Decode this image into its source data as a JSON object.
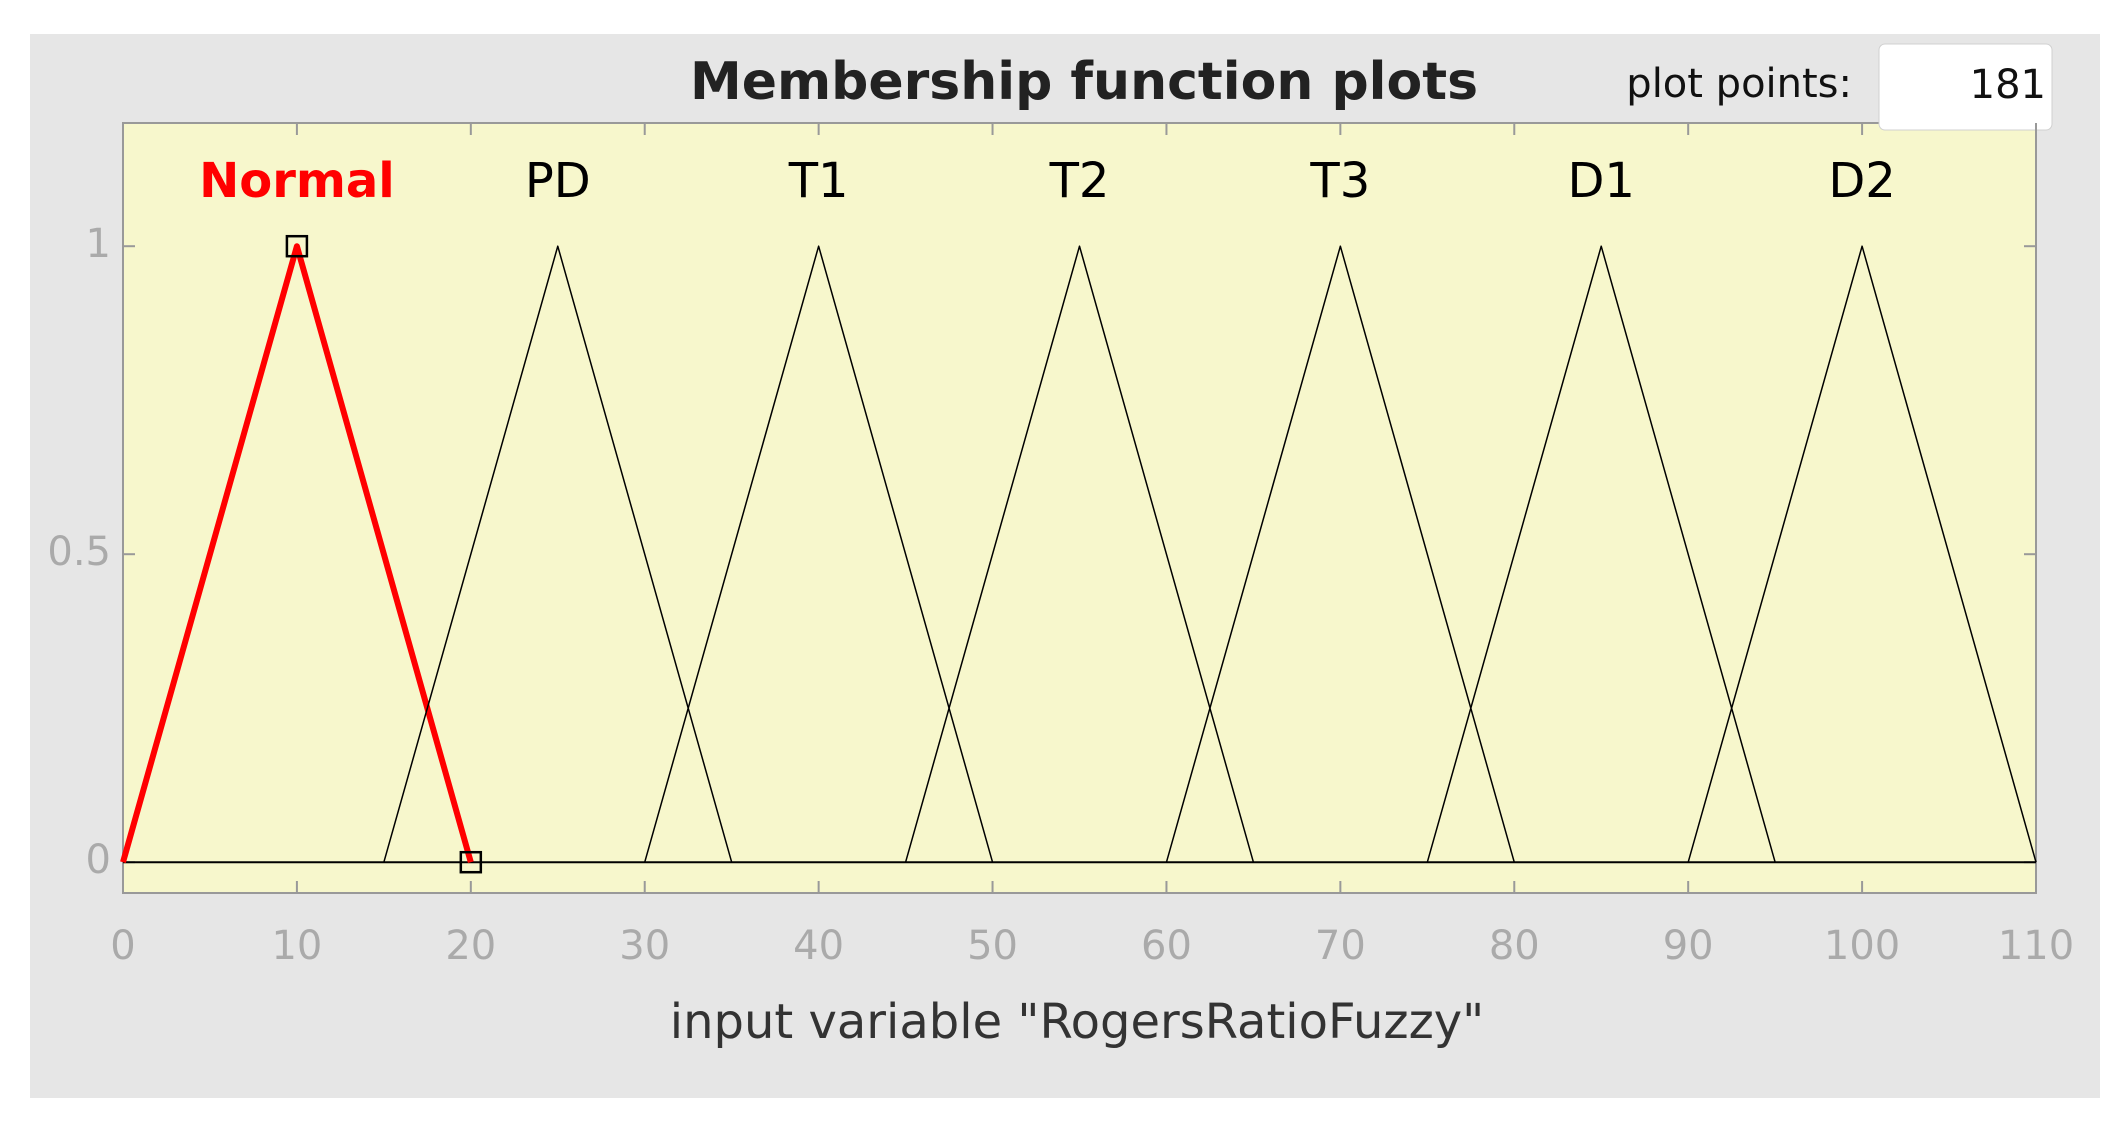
{
  "chart_data": {
    "type": "line",
    "title": "Membership function plots",
    "x_label": "input variable \"RogersRatioFuzzy\"",
    "xlim": [
      0,
      110
    ],
    "xticks": [
      0,
      10,
      20,
      30,
      40,
      50,
      60,
      70,
      80,
      90,
      100,
      110
    ],
    "ylim": [
      -0.05,
      1.2
    ],
    "yticks": [
      0,
      0.5,
      1
    ],
    "grid": false,
    "series": [
      {
        "name": "Normal",
        "color": "#ff0000",
        "width": 6,
        "x": [
          0,
          10,
          20
        ],
        "values": [
          0,
          1,
          0
        ]
      },
      {
        "name": "PD",
        "color": "#000000",
        "width": 1.5,
        "x": [
          15,
          25,
          35
        ],
        "values": [
          0,
          1,
          0
        ]
      },
      {
        "name": "T1",
        "color": "#000000",
        "width": 1.5,
        "x": [
          30,
          40,
          50
        ],
        "values": [
          0,
          1,
          0
        ]
      },
      {
        "name": "T2",
        "color": "#000000",
        "width": 1.5,
        "x": [
          45,
          55,
          65
        ],
        "values": [
          0,
          1,
          0
        ]
      },
      {
        "name": "T3",
        "color": "#000000",
        "width": 1.5,
        "x": [
          60,
          70,
          80
        ],
        "values": [
          0,
          1,
          0
        ]
      },
      {
        "name": "D1",
        "color": "#000000",
        "width": 1.5,
        "x": [
          75,
          85,
          95
        ],
        "values": [
          0,
          1,
          0
        ]
      },
      {
        "name": "D2",
        "color": "#000000",
        "width": 1.5,
        "x": [
          90,
          100,
          110
        ],
        "values": [
          0,
          1,
          0
        ]
      }
    ]
  },
  "plot_points": {
    "label": "plot points:",
    "value": 181
  }
}
